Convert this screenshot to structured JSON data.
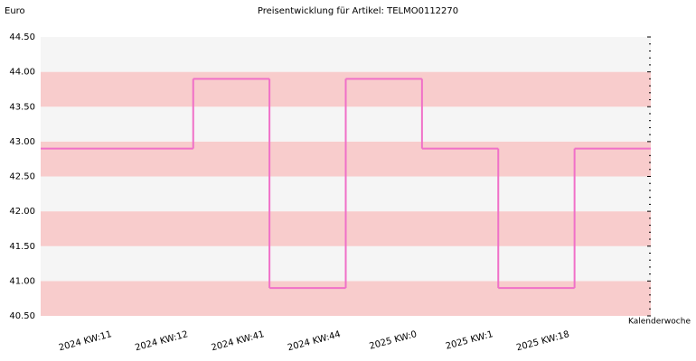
{
  "chart_data": {
    "type": "step",
    "title": "Preisentwicklung für Artikel: TELMO0112270",
    "y_label": "Euro",
    "x_label": "Kalenderwoche",
    "categories": [
      "2024 KW:11",
      "2024 KW:12",
      "2024 KW:41",
      "2024 KW:44",
      "2025 KW:0",
      "2025 KW:1",
      "2025 KW:18"
    ],
    "values": [
      42.9,
      43.9,
      40.9,
      43.9,
      42.9,
      40.9,
      42.9
    ],
    "color": "#f070c8",
    "band_colors": [
      "#f8cccc",
      "#f5f5f5"
    ],
    "ylim": [
      40.5,
      44.5
    ],
    "yticks": [
      {
        "value": 40.5,
        "label": "40.50"
      },
      {
        "value": 41,
        "label": "41.00"
      },
      {
        "value": 41.5,
        "label": "41.50"
      },
      {
        "value": 42,
        "label": "42.00"
      },
      {
        "value": 42.5,
        "label": "42.50"
      },
      {
        "value": 43,
        "label": "43.00"
      },
      {
        "value": 43.5,
        "label": "43.50"
      },
      {
        "value": 44,
        "label": "44.00"
      },
      {
        "value": 44.5,
        "label": "44.50"
      }
    ]
  }
}
